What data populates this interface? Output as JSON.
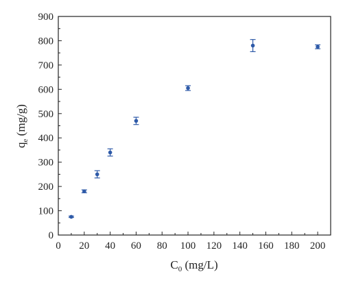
{
  "chart_data": {
    "type": "scatter",
    "xlabel": {
      "main": "C",
      "sub": "0",
      "unit": " (mg/L)"
    },
    "ylabel": {
      "main": "q",
      "sub": "e",
      "unit": " (mg/g)"
    },
    "xlim": [
      0,
      210
    ],
    "ylim": [
      0,
      900
    ],
    "x_ticks": [
      0,
      20,
      40,
      60,
      80,
      100,
      120,
      140,
      160,
      180,
      200
    ],
    "y_ticks": [
      0,
      100,
      200,
      300,
      400,
      500,
      600,
      700,
      800,
      900
    ],
    "grid": false,
    "color": "#2e5aa8",
    "axis_color": "#222222",
    "series": [
      {
        "x": [
          10,
          20,
          30,
          40,
          60,
          100,
          150,
          200
        ],
        "y": [
          75,
          180,
          250,
          340,
          470,
          605,
          780,
          775
        ],
        "error": [
          3,
          6,
          15,
          15,
          15,
          10,
          25,
          8
        ]
      }
    ]
  }
}
